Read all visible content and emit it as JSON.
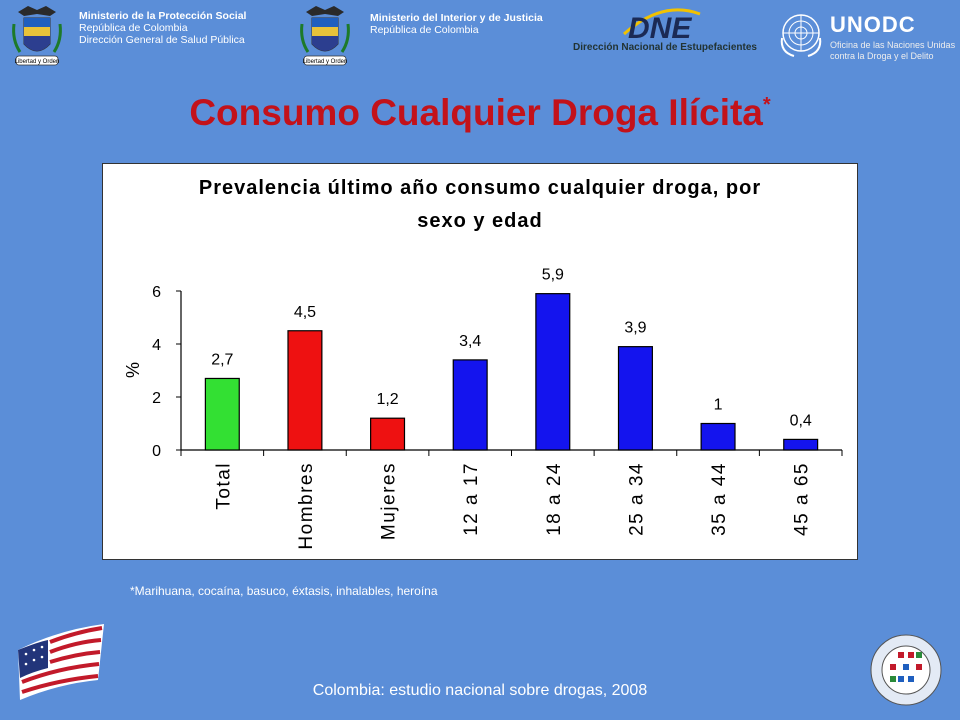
{
  "header": {
    "left_block": {
      "line1": "Ministerio de la Protección Social",
      "line2": "República de Colombia",
      "line3": "Dirección General de Salud Pública"
    },
    "middle_block": {
      "line1": "Ministerio del Interior y de Justicia",
      "line2": "República de Colombia"
    },
    "seal_motto": "Libertad y Orden",
    "dne_logo": "DNE",
    "dne_subtitle": "Dirección Nacional de Estupefacientes",
    "unodc_logo": "UNODC",
    "unodc_sub1": "Oficina de las Naciones Unidas",
    "unodc_sub2": "contra la Droga y el Delito"
  },
  "slide": {
    "title": "Consumo Cualquier Droga Ilícita",
    "title_mark": "*",
    "footnote": "*Marihuana, cocaína, basuco, éxtasis, inhalables, heroína",
    "footer": "Colombia: estudio nacional sobre drogas, 2008"
  },
  "chart_data": {
    "type": "bar",
    "title_line1": "Prevalencia último año consumo cualquier droga, por",
    "title_line2": "sexo y edad",
    "ylabel": "%",
    "ylim": [
      0,
      6
    ],
    "yticks": [
      "0",
      "2",
      "4",
      "6"
    ],
    "categories": [
      "Total",
      "Hombres",
      "Mujeres",
      "12 a 17",
      "18 a 24",
      "25 a 34",
      "35 a 44",
      "45 a 65"
    ],
    "values": [
      2.7,
      4.5,
      1.2,
      3.4,
      5.9,
      3.9,
      1,
      0.4
    ],
    "value_labels": [
      "2,7",
      "4,5",
      "1,2",
      "3,4",
      "5,9",
      "3,9",
      "1",
      "0,4"
    ],
    "colors": [
      "#33e033",
      "#ee1111",
      "#ee1111",
      "#1414ee",
      "#1414ee",
      "#1414ee",
      "#1414ee",
      "#1414ee"
    ],
    "grid": false,
    "legend": "none"
  }
}
